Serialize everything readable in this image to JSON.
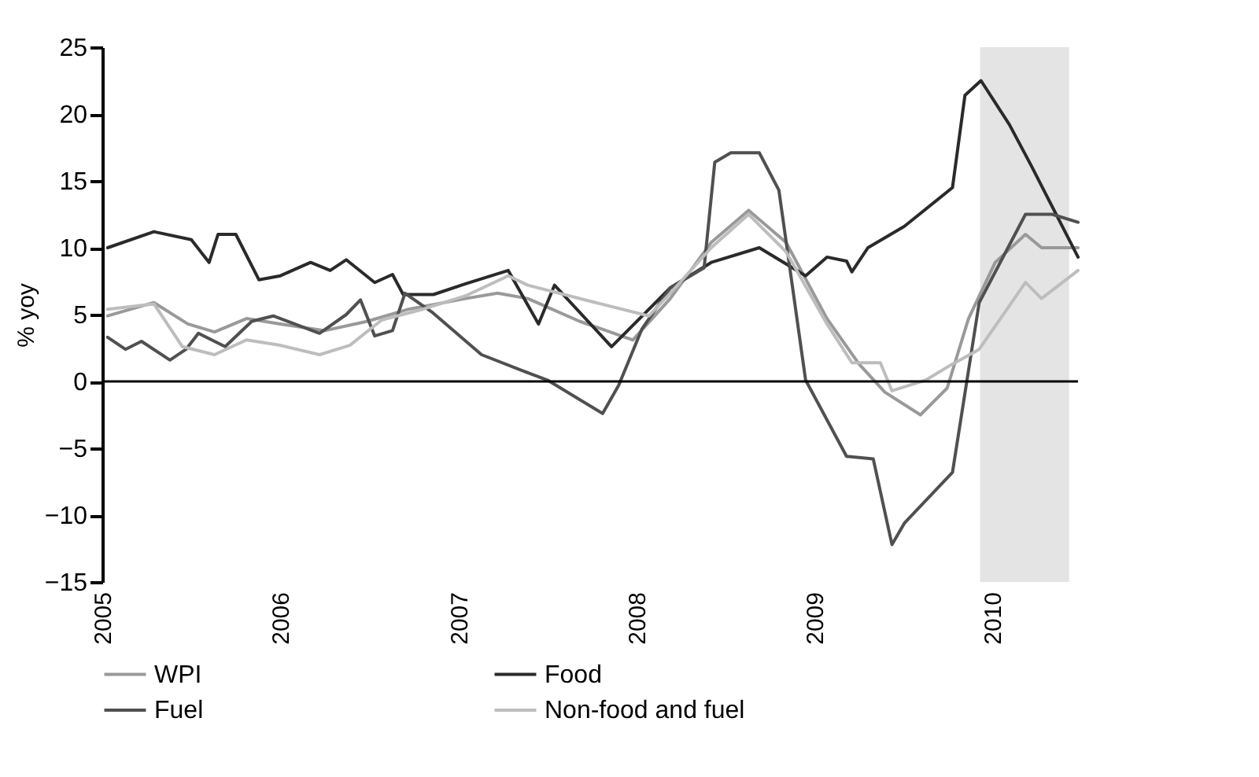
{
  "chart_data": {
    "type": "line",
    "ylabel": "% yoy",
    "xlim": [
      2005,
      2010.48
    ],
    "xticks": [
      2005,
      2006,
      2007,
      2008,
      2009,
      2010
    ],
    "ylim": [
      -15,
      25
    ],
    "yticks": [
      -15,
      -10,
      -5,
      0,
      5,
      10,
      15,
      20,
      25
    ],
    "grid": false,
    "legend": "bottom",
    "marker": "none",
    "line_style": "solid",
    "ref_lines": [
      {
        "axis": "y",
        "value": 0,
        "color": "#000000"
      }
    ],
    "bands": [
      {
        "axis": "x",
        "from": 2009.93,
        "to": 2010.43,
        "color": "#e4e4e4"
      }
    ],
    "series": [
      {
        "name": "WPI",
        "color": "#999999",
        "x": [
          2005.03,
          2005.29,
          2005.48,
          2005.63,
          2005.81,
          2006.0,
          2006.25,
          2006.49,
          2006.72,
          2007.04,
          2007.22,
          2007.39,
          2007.68,
          2007.98,
          2008.19,
          2008.42,
          2008.63,
          2008.84,
          2009.07,
          2009.25,
          2009.395,
          2009.595,
          2009.745,
          2009.865,
          2010.015,
          2010.185,
          2010.275,
          2010.48
        ],
        "values": [
          4.9,
          5.9,
          4.3,
          3.7,
          4.7,
          4.3,
          3.8,
          4.5,
          5.4,
          6.2,
          6.6,
          6.2,
          4.5,
          3.1,
          6.2,
          10.4,
          12.8,
          10.4,
          4.7,
          1.3,
          -0.8,
          -2.5,
          -0.5,
          4.7,
          8.9,
          11,
          10,
          10
        ]
      },
      {
        "name": "Food",
        "color": "#2a2a2a",
        "x": [
          2005.03,
          2005.29,
          2005.5,
          2005.6,
          2005.65,
          2005.75,
          2005.88,
          2006.0,
          2006.17,
          2006.28,
          2006.37,
          2006.53,
          2006.63,
          2006.69,
          2006.86,
          2007.04,
          2007.28,
          2007.45,
          2007.54,
          2007.86,
          2008.19,
          2008.42,
          2008.69,
          2008.95,
          2009.07,
          2009.18,
          2009.21,
          2009.3,
          2009.505,
          2009.775,
          2009.845,
          2009.935,
          2010.095,
          2010.215,
          2010.48
        ],
        "values": [
          10,
          11.2,
          10.6,
          8.9,
          11,
          11,
          7.6,
          7.9,
          8.9,
          8.3,
          9.1,
          7.4,
          8,
          6.5,
          6.5,
          7.3,
          8.3,
          4.3,
          7.2,
          2.6,
          7,
          8.9,
          10,
          7.9,
          9.3,
          9,
          8.2,
          10,
          11.6,
          14.5,
          21.4,
          22.5,
          19.2,
          16.2,
          9.3
        ]
      },
      {
        "name": "Fuel",
        "color": "#505050",
        "x": [
          2005.03,
          2005.13,
          2005.22,
          2005.38,
          2005.47,
          2005.54,
          2005.69,
          2005.84,
          2005.96,
          2006.22,
          2006.37,
          2006.45,
          2006.53,
          2006.63,
          2006.7,
          2006.85,
          2007.13,
          2007.36,
          2007.5,
          2007.81,
          2007.9,
          2008.03,
          2008.19,
          2008.38,
          2008.44,
          2008.53,
          2008.69,
          2008.8,
          2008.95,
          2009.18,
          2009.33,
          2009.435,
          2009.505,
          2009.775,
          2009.925,
          2010.185,
          2010.335,
          2010.48
        ],
        "values": [
          3.3,
          2.4,
          3,
          1.6,
          2.4,
          3.6,
          2.6,
          4.5,
          4.9,
          3.6,
          5,
          6.1,
          3.4,
          3.8,
          6.6,
          5.2,
          2,
          0.8,
          0.1,
          -2.4,
          -0.3,
          3.9,
          7,
          8.5,
          16.4,
          17.1,
          17.1,
          14.3,
          0.1,
          -5.6,
          -5.8,
          -12.2,
          -10.6,
          -6.8,
          5.9,
          12.5,
          12.5,
          11.9
        ]
      },
      {
        "name": "Non-food and fuel",
        "color": "#bdbdbd",
        "x": [
          2005.03,
          2005.29,
          2005.45,
          2005.63,
          2005.81,
          2006.0,
          2006.22,
          2006.39,
          2006.57,
          2006.8,
          2007.04,
          2007.28,
          2007.39,
          2007.77,
          2008.07,
          2008.19,
          2008.42,
          2008.63,
          2008.84,
          2009.07,
          2009.21,
          2009.37,
          2009.435,
          2009.625,
          2009.775,
          2009.925,
          2010.185,
          2010.275,
          2010.48
        ],
        "values": [
          5.4,
          5.8,
          2.6,
          2,
          3.1,
          2.7,
          2,
          2.7,
          4.6,
          5.4,
          6.4,
          7.9,
          7.2,
          5.9,
          4.9,
          6.6,
          10,
          12.5,
          9.7,
          4.3,
          1.4,
          1.4,
          -0.7,
          0.1,
          1.3,
          2.4,
          7.4,
          6.2,
          8.3
        ]
      }
    ]
  }
}
